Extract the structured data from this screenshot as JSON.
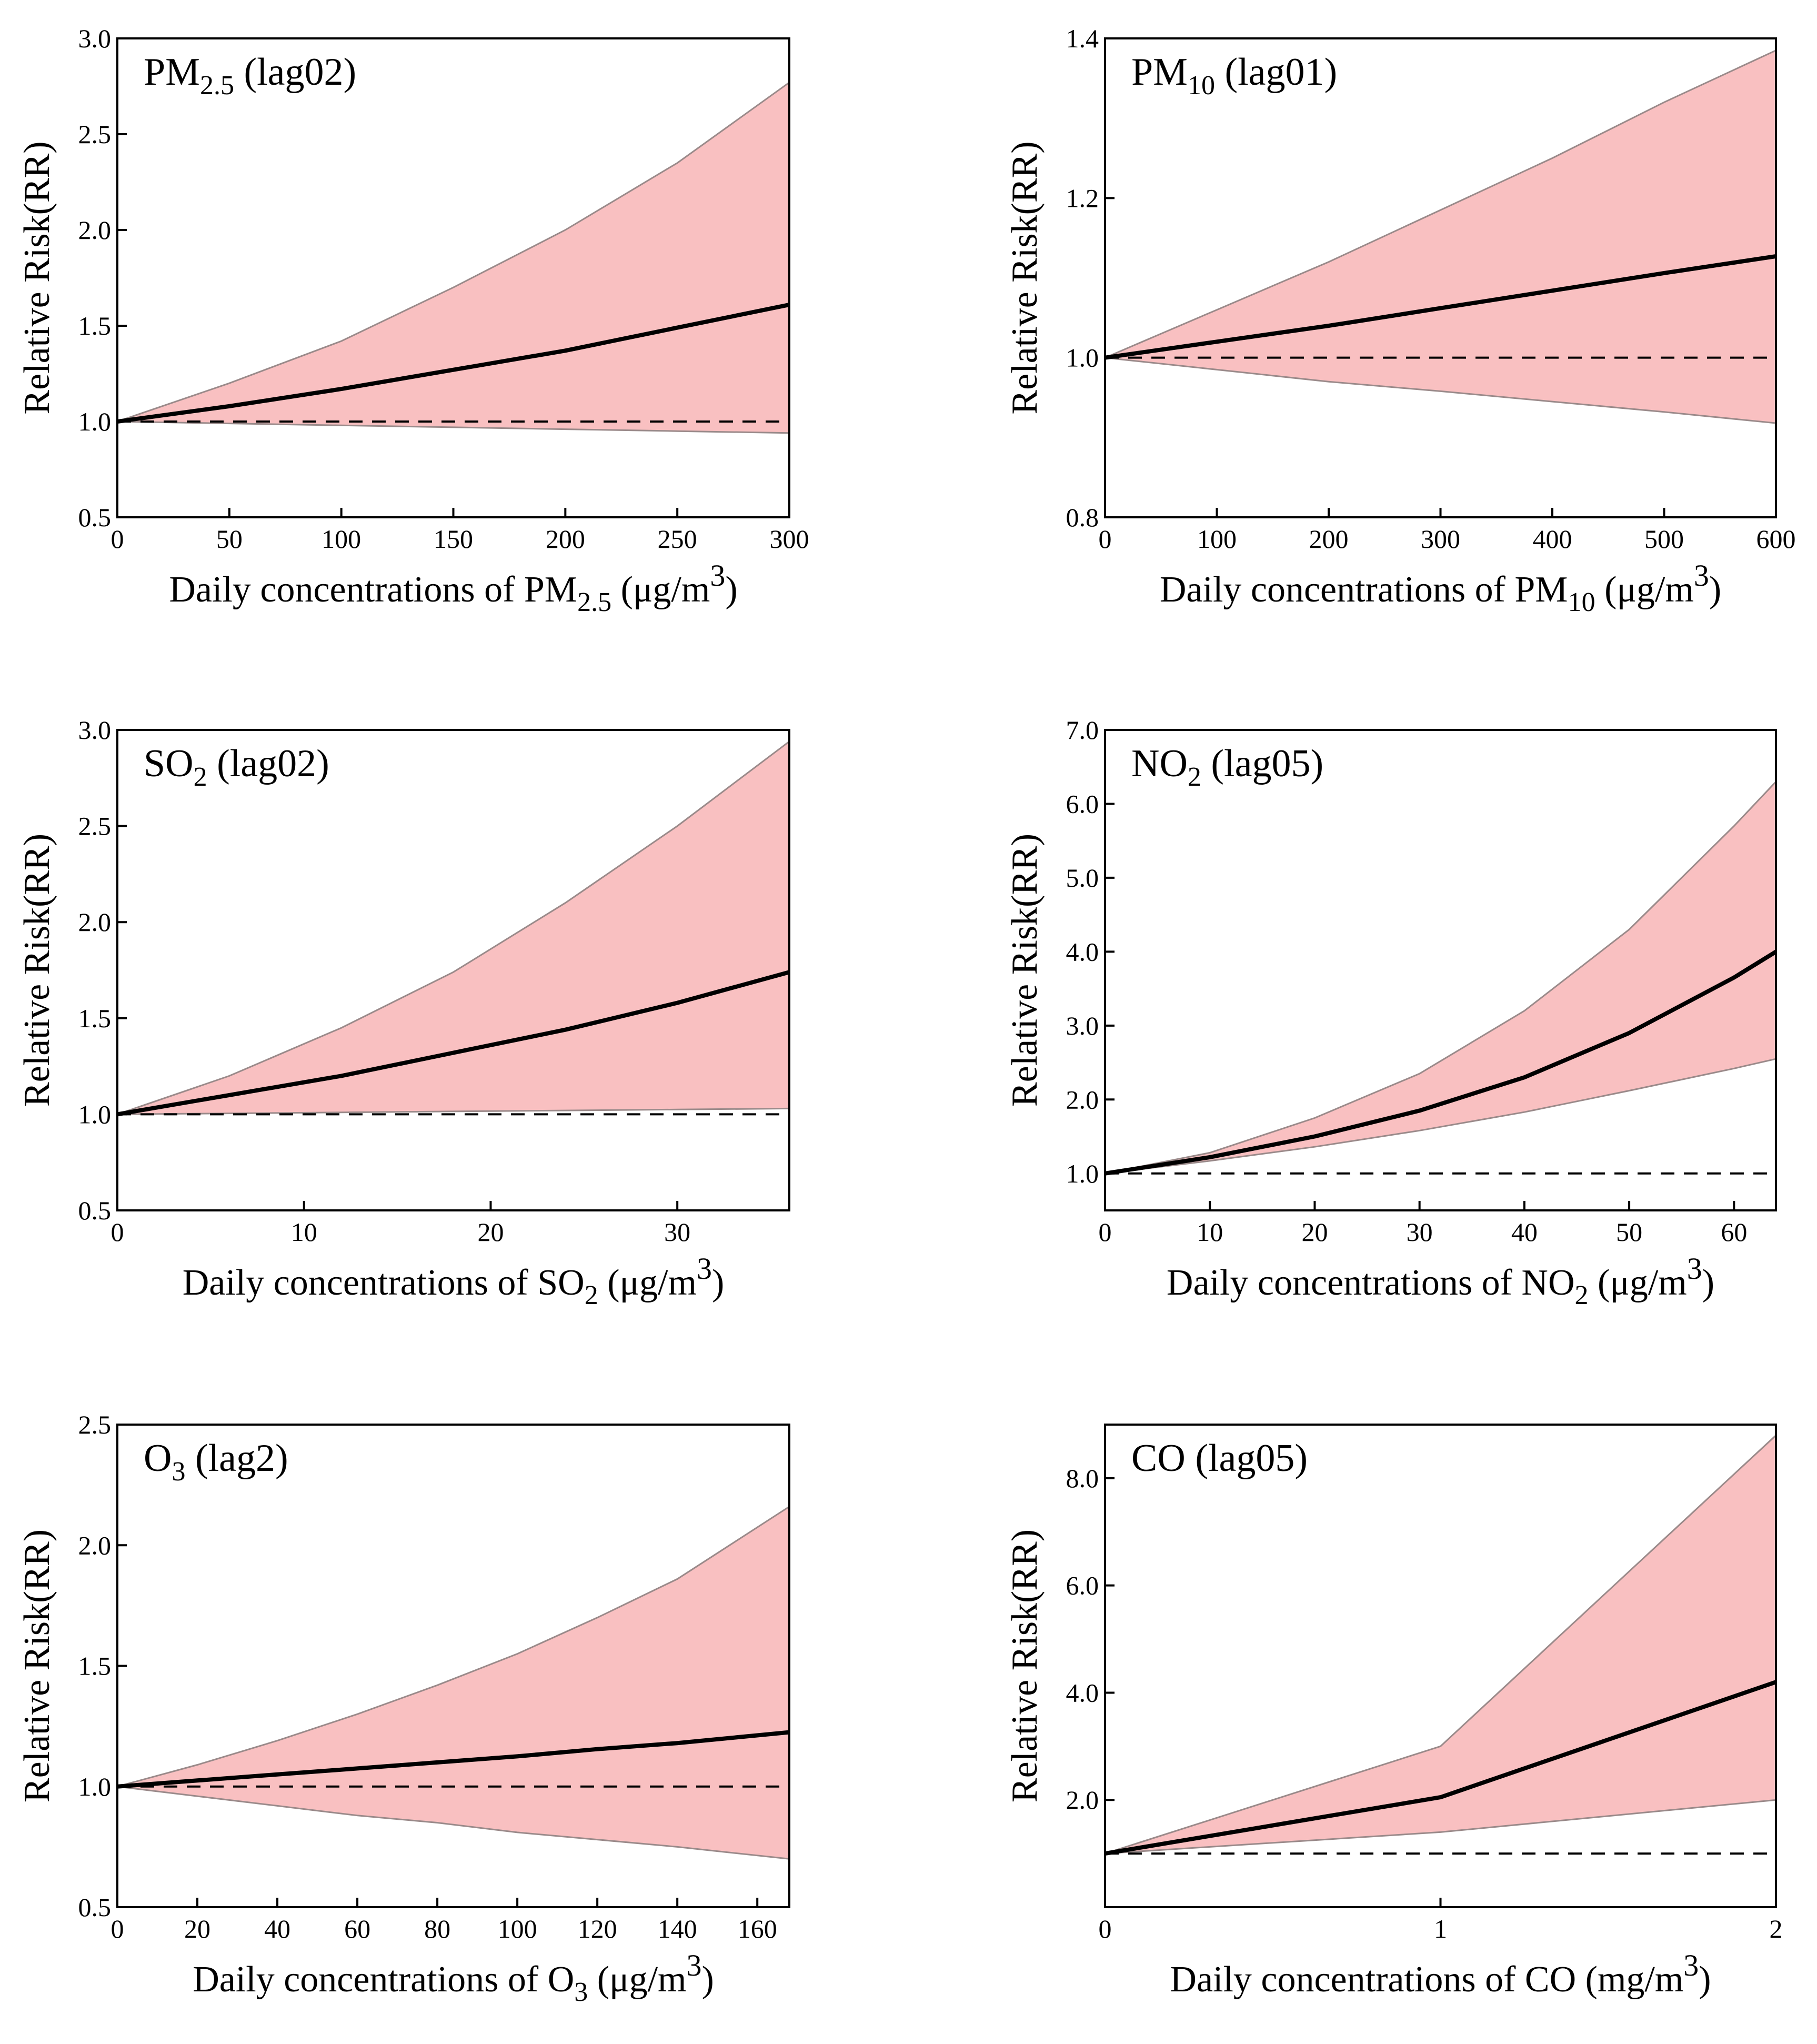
{
  "chart_data": [
    {
      "id": "pm25",
      "type": "line",
      "title": {
        "pre": "PM",
        "sub": "2.5",
        "post": " (lag02)"
      },
      "xlabel": {
        "pre": "Daily concentrations of PM",
        "sub": "2.5",
        "mid": " (μg/m",
        "sup": "3",
        "post": ")"
      },
      "ylabel": "Relative Risk(RR)",
      "xlim": [
        0,
        300
      ],
      "ylim": [
        0.5,
        3.0
      ],
      "xticks": [
        0,
        50,
        100,
        150,
        200,
        250,
        300
      ],
      "yticks": [
        0.5,
        1.0,
        1.5,
        2.0,
        2.5,
        3.0
      ],
      "ytick_labels": [
        "0.5",
        "1.0",
        "1.5",
        "2.0",
        "2.5",
        "3.0"
      ],
      "reference_line": 1.0,
      "x": [
        0,
        50,
        100,
        150,
        200,
        250,
        300
      ],
      "series": [
        {
          "name": "RR",
          "values": [
            1.0,
            1.08,
            1.17,
            1.27,
            1.37,
            1.49,
            1.61
          ]
        },
        {
          "name": "upper_95CI",
          "values": [
            1.0,
            1.2,
            1.42,
            1.7,
            2.0,
            2.35,
            2.77
          ]
        },
        {
          "name": "lower_95CI",
          "values": [
            1.0,
            0.99,
            0.98,
            0.97,
            0.96,
            0.95,
            0.94
          ]
        }
      ]
    },
    {
      "id": "pm10",
      "type": "line",
      "title": {
        "pre": "PM",
        "sub": "10",
        "post": " (lag01)"
      },
      "xlabel": {
        "pre": "Daily concentrations of PM",
        "sub": "10",
        "mid": " (μg/m",
        "sup": "3",
        "post": ")"
      },
      "ylabel": "Relative Risk(RR)",
      "xlim": [
        0,
        600
      ],
      "ylim": [
        0.8,
        1.4
      ],
      "xticks": [
        0,
        100,
        200,
        300,
        400,
        500,
        600
      ],
      "yticks": [
        0.8,
        1.0,
        1.2,
        1.4
      ],
      "ytick_labels": [
        "0.8",
        "1.0",
        "1.2",
        "1.4"
      ],
      "reference_line": 1.0,
      "x": [
        0,
        100,
        200,
        300,
        400,
        500,
        600
      ],
      "series": [
        {
          "name": "RR",
          "values": [
            1.0,
            1.02,
            1.04,
            1.062,
            1.084,
            1.106,
            1.127
          ]
        },
        {
          "name": "upper_95CI",
          "values": [
            1.0,
            1.06,
            1.12,
            1.185,
            1.25,
            1.32,
            1.385
          ]
        },
        {
          "name": "lower_95CI",
          "values": [
            1.0,
            0.985,
            0.97,
            0.958,
            0.945,
            0.932,
            0.918
          ]
        }
      ]
    },
    {
      "id": "so2",
      "type": "line",
      "title": {
        "pre": "SO",
        "sub": "2",
        "post": " (lag02)"
      },
      "xlabel": {
        "pre": "Daily concentrations of SO",
        "sub": "2",
        "mid": " (μg/m",
        "sup": "3",
        "post": ")"
      },
      "ylabel": "Relative Risk(RR)",
      "xlim": [
        0,
        36
      ],
      "ylim": [
        0.5,
        3.0
      ],
      "xticks": [
        0,
        10,
        20,
        30
      ],
      "yticks": [
        0.5,
        1.0,
        1.5,
        2.0,
        2.5,
        3.0
      ],
      "ytick_labels": [
        "0.5",
        "1.0",
        "1.5",
        "2.0",
        "2.5",
        "3.0"
      ],
      "reference_line": 1.0,
      "x": [
        0,
        6,
        12,
        18,
        24,
        30,
        36
      ],
      "series": [
        {
          "name": "RR",
          "values": [
            1.0,
            1.1,
            1.2,
            1.32,
            1.44,
            1.58,
            1.74
          ]
        },
        {
          "name": "upper_95CI",
          "values": [
            1.0,
            1.2,
            1.45,
            1.74,
            2.1,
            2.5,
            2.94
          ]
        },
        {
          "name": "lower_95CI",
          "values": [
            1.0,
            1.005,
            1.01,
            1.015,
            1.02,
            1.025,
            1.03
          ]
        }
      ]
    },
    {
      "id": "no2",
      "type": "line",
      "title": {
        "pre": "NO",
        "sub": "2",
        "post": " (lag05)"
      },
      "xlabel": {
        "pre": "Daily concentrations of NO",
        "sub": "2",
        "mid": " (μg/m",
        "sup": "3",
        "post": ")"
      },
      "ylabel": "Relative Risk(RR)",
      "xlim": [
        0,
        64
      ],
      "ylim": [
        0.5,
        7.0
      ],
      "xticks": [
        0,
        10,
        20,
        30,
        40,
        50,
        60
      ],
      "yticks": [
        1.0,
        2.0,
        3.0,
        4.0,
        5.0,
        6.0,
        7.0
      ],
      "ytick_labels": [
        "1.0",
        "2.0",
        "3.0",
        "4.0",
        "5.0",
        "6.0",
        "7.0"
      ],
      "reference_line": 1.0,
      "x": [
        0,
        10,
        20,
        30,
        40,
        50,
        60,
        64
      ],
      "series": [
        {
          "name": "RR",
          "values": [
            1.0,
            1.22,
            1.5,
            1.85,
            2.3,
            2.9,
            3.65,
            4.0
          ]
        },
        {
          "name": "upper_95CI",
          "values": [
            1.0,
            1.28,
            1.75,
            2.35,
            3.2,
            4.3,
            5.7,
            6.3
          ]
        },
        {
          "name": "lower_95CI",
          "values": [
            1.0,
            1.17,
            1.36,
            1.58,
            1.83,
            2.12,
            2.42,
            2.55
          ]
        }
      ]
    },
    {
      "id": "o3",
      "type": "line",
      "title": {
        "pre": "O",
        "sub": "3",
        "post": " (lag2)"
      },
      "xlabel": {
        "pre": "Daily concentrations of O",
        "sub": "3",
        "mid": " (μg/m",
        "sup": "3",
        "post": ")"
      },
      "ylabel": "Relative Risk(RR)",
      "xlim": [
        0,
        168
      ],
      "ylim": [
        0.5,
        2.5
      ],
      "xticks": [
        0,
        20,
        40,
        60,
        80,
        100,
        120,
        140,
        160
      ],
      "yticks": [
        0.5,
        1.0,
        1.5,
        2.0,
        2.5
      ],
      "ytick_labels": [
        "0.5",
        "1.0",
        "1.5",
        "2.0",
        "2.5"
      ],
      "reference_line": 1.0,
      "x": [
        0,
        20,
        40,
        60,
        80,
        100,
        120,
        140,
        168
      ],
      "series": [
        {
          "name": "RR",
          "values": [
            1.0,
            1.025,
            1.05,
            1.075,
            1.1,
            1.125,
            1.155,
            1.18,
            1.225
          ]
        },
        {
          "name": "upper_95CI",
          "values": [
            1.0,
            1.09,
            1.19,
            1.3,
            1.42,
            1.55,
            1.7,
            1.86,
            2.16
          ]
        },
        {
          "name": "lower_95CI",
          "values": [
            1.0,
            0.96,
            0.92,
            0.88,
            0.85,
            0.81,
            0.78,
            0.75,
            0.7
          ]
        }
      ]
    },
    {
      "id": "co",
      "type": "line",
      "title": {
        "pre": "CO",
        "sub": "",
        "post": " (lag05)"
      },
      "xlabel": {
        "pre": "Daily concentrations of CO",
        "sub": "",
        "mid": " (mg/m",
        "sup": "3",
        "post": ")"
      },
      "ylabel": "Relative Risk(RR)",
      "xlim": [
        0,
        2
      ],
      "ylim": [
        0.0,
        9.0
      ],
      "xticks": [
        0,
        1,
        2
      ],
      "yticks": [
        2.0,
        4.0,
        6.0,
        8.0
      ],
      "ytick_labels": [
        "2.0",
        "4.0",
        "6.0",
        "8.0"
      ],
      "reference_line": 1.0,
      "x": [
        0,
        1,
        2
      ],
      "series": [
        {
          "name": "RR",
          "values": [
            1.0,
            2.05,
            4.2
          ]
        },
        {
          "name": "upper_95CI",
          "values": [
            1.0,
            3.0,
            8.8
          ]
        },
        {
          "name": "lower_95CI",
          "values": [
            1.0,
            1.4,
            2.0
          ]
        }
      ]
    }
  ],
  "colors": {
    "band": "#f9c0c1",
    "band_edge": "#9a8a8a",
    "line": "#000000",
    "frame": "#000000"
  }
}
